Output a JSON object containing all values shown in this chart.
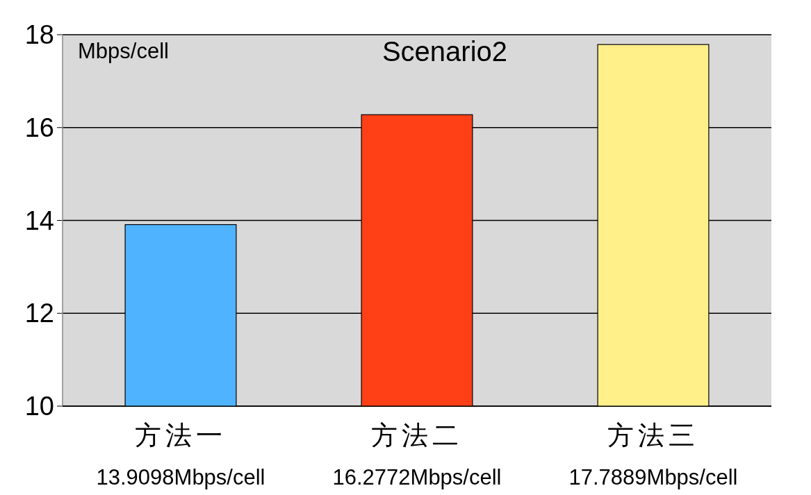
{
  "chart_data": {
    "type": "bar",
    "title": "Scenario2",
    "ylabel": "Mbps/cell",
    "categories": [
      "方法一",
      "方法二",
      "方法三"
    ],
    "values": [
      13.9098,
      16.2772,
      17.7889
    ],
    "colors": [
      "#4fb3ff",
      "#ff3f16",
      "#fff08a"
    ],
    "value_labels": [
      "13.9098Mbps/cell",
      "16.2772Mbps/cell",
      "17.7889Mbps/cell"
    ],
    "ylim": [
      10,
      18
    ],
    "yticks": [
      10,
      12,
      14,
      16,
      18
    ],
    "grid": "y"
  }
}
